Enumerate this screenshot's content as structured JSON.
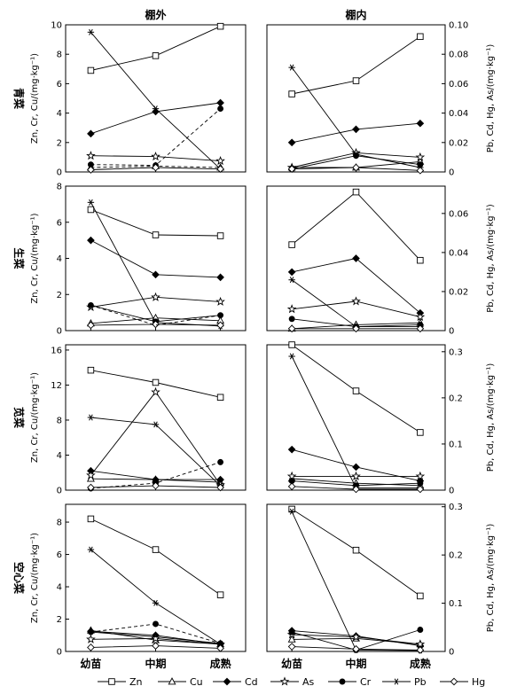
{
  "chart_data": {
    "type": "line",
    "columns": [
      "棚外",
      "棚内"
    ],
    "categories": [
      "幼苗",
      "中期",
      "成熟"
    ],
    "ylabel_left": "Zn, Cr, Cu/(mg·kg⁻¹)",
    "ylabel_right": "Pb, Cd, Hg, As/(mg·kg⁻¹)",
    "legend": [
      {
        "name": "Zn",
        "marker": "square"
      },
      {
        "name": "Cu",
        "marker": "triangle"
      },
      {
        "name": "Cd",
        "marker": "diamond-filled"
      },
      {
        "name": "As",
        "marker": "star-open"
      },
      {
        "name": "Cr",
        "marker": "circle-filled"
      },
      {
        "name": "Pb",
        "marker": "asterisk"
      },
      {
        "name": "Hg",
        "marker": "diamond-open"
      }
    ],
    "rows": [
      {
        "label": "青菜",
        "left_ticks": [
          "0",
          "2",
          "4",
          "6",
          "8",
          "10"
        ],
        "left_max": 10,
        "right_ticks": [
          "0",
          "0.02",
          "0.04",
          "0.06",
          "0.08",
          "0.10"
        ],
        "right_max": 0.1,
        "panels": [
          {
            "series": [
              {
                "name": "Zn",
                "axis": "left",
                "values": [
                  6.9,
                  7.9,
                  9.9
                ]
              },
              {
                "name": "Cu",
                "axis": "left",
                "values": [
                  0.3,
                  0.4,
                  0.3
                ],
                "dashed": true
              },
              {
                "name": "Cd",
                "axis": "left",
                "values": [
                  2.6,
                  4.1,
                  4.7
                ]
              },
              {
                "name": "As",
                "axis": "left",
                "values": [
                  1.1,
                  1.05,
                  0.75
                ]
              },
              {
                "name": "Cr",
                "axis": "left",
                "values": [
                  0.5,
                  0.45,
                  4.3
                ],
                "dashed": true
              },
              {
                "name": "Pb",
                "axis": "left",
                "values": [
                  9.5,
                  4.3,
                  0.2
                ]
              },
              {
                "name": "Hg",
                "axis": "left",
                "values": [
                  0.15,
                  0.3,
                  0.2
                ]
              }
            ]
          },
          {
            "series": [
              {
                "name": "Zn",
                "axis": "right",
                "values": [
                  0.053,
                  0.062,
                  0.092
                ]
              },
              {
                "name": "Cu",
                "axis": "right",
                "values": [
                  0.003,
                  0.003,
                  0.007
                ]
              },
              {
                "name": "Cd",
                "axis": "right",
                "values": [
                  0.02,
                  0.029,
                  0.033
                ]
              },
              {
                "name": "As",
                "axis": "right",
                "values": [
                  0.003,
                  0.013,
                  0.01
                ]
              },
              {
                "name": "Cr",
                "axis": "right",
                "values": [
                  0.002,
                  0.011,
                  0.005
                ]
              },
              {
                "name": "Pb",
                "axis": "right",
                "values": [
                  0.071,
                  0.012,
                  0.003
                ]
              },
              {
                "name": "Hg",
                "axis": "right",
                "values": [
                  0.002,
                  0.003,
                  0.001
                ]
              }
            ]
          }
        ]
      },
      {
        "label": "生菜",
        "left_ticks": [
          "0",
          "2",
          "4",
          "6",
          "8"
        ],
        "left_max": 8,
        "right_ticks": [
          "0",
          "0.02",
          "0.04",
          "0.06"
        ],
        "right_max": 0.074,
        "panels": [
          {
            "series": [
              {
                "name": "Zn",
                "axis": "left",
                "values": [
                  6.7,
                  5.3,
                  5.25
                ]
              },
              {
                "name": "Cu",
                "axis": "left",
                "values": [
                  0.4,
                  0.7,
                  0.55
                ]
              },
              {
                "name": "Cd",
                "axis": "left",
                "values": [
                  5.0,
                  3.1,
                  2.95
                ]
              },
              {
                "name": "As",
                "axis": "left",
                "values": [
                  1.3,
                  1.85,
                  1.6
                ]
              },
              {
                "name": "Cr",
                "axis": "left",
                "values": [
                  1.4,
                  0.5,
                  0.85
                ]
              },
              {
                "name": "Pb",
                "axis": "left",
                "values": [
                  7.1,
                  0.45,
                  0.25
                ]
              },
              {
                "name": "Hg",
                "axis": "left",
                "values": [
                  0.3,
                  0.35,
                  0.3
                ]
              },
              {
                "name": "Cr",
                "axis": "left",
                "values": [
                  1.4,
                  0.3,
                  0.85
                ],
                "dashed": true,
                "markers": false
              }
            ]
          },
          {
            "series": [
              {
                "name": "Zn",
                "axis": "right",
                "values": [
                  0.044,
                  0.071,
                  0.036
                ]
              },
              {
                "name": "Cu",
                "axis": "right",
                "values": [
                  0.001,
                  0.003,
                  0.004
                ]
              },
              {
                "name": "Cd",
                "axis": "right",
                "values": [
                  0.03,
                  0.037,
                  0.009
                ]
              },
              {
                "name": "As",
                "axis": "right",
                "values": [
                  0.011,
                  0.015,
                  0.007
                ]
              },
              {
                "name": "Cr",
                "axis": "right",
                "values": [
                  0.006,
                  0.002,
                  0.003
                ]
              },
              {
                "name": "Pb",
                "axis": "right",
                "values": [
                  0.026,
                  0.002,
                  0.002
                ]
              },
              {
                "name": "Hg",
                "axis": "right",
                "values": [
                  0.001,
                  0.001,
                  0.001
                ]
              }
            ]
          }
        ]
      },
      {
        "label": "苋菜",
        "left_ticks": [
          "0",
          "4",
          "8",
          "12",
          "16"
        ],
        "left_max": 16.6,
        "right_ticks": [
          "0",
          "0.1",
          "0.2",
          "0.3"
        ],
        "right_max": 0.315,
        "panels": [
          {
            "series": [
              {
                "name": "Zn",
                "axis": "left",
                "values": [
                  13.7,
                  12.3,
                  10.6
                ]
              },
              {
                "name": "Cu",
                "axis": "left",
                "values": [
                  1.3,
                  1.2,
                  0.9
                ]
              },
              {
                "name": "Cd",
                "axis": "left",
                "values": [
                  2.2,
                  1.2,
                  1.2
                ]
              },
              {
                "name": "As",
                "axis": "left",
                "values": [
                  1.7,
                  11.2,
                  0.6
                ]
              },
              {
                "name": "Cr",
                "axis": "left",
                "values": [
                  0.2,
                  0.8,
                  3.2
                ],
                "dashed": true
              },
              {
                "name": "Pb",
                "axis": "left",
                "values": [
                  8.3,
                  7.5,
                  0.5
                ]
              },
              {
                "name": "Hg",
                "axis": "left",
                "values": [
                  0.3,
                  0.5,
                  0.3
                ]
              }
            ]
          },
          {
            "series": [
              {
                "name": "Zn",
                "axis": "right",
                "values": [
                  0.315,
                  0.215,
                  0.125
                ]
              },
              {
                "name": "Cu",
                "axis": "right",
                "values": [
                  0.025,
                  0.015,
                  0.01
                ]
              },
              {
                "name": "Cd",
                "axis": "right",
                "values": [
                  0.088,
                  0.05,
                  0.02
                ]
              },
              {
                "name": "As",
                "axis": "right",
                "values": [
                  0.03,
                  0.03,
                  0.03
                ]
              },
              {
                "name": "Cr",
                "axis": "right",
                "values": [
                  0.02,
                  0.01,
                  0.015
                ]
              },
              {
                "name": "Pb",
                "axis": "right",
                "values": [
                  0.29,
                  0.005,
                  0.005
                ]
              },
              {
                "name": "Hg",
                "axis": "right",
                "values": [
                  0.008,
                  0.002,
                  0.002
                ]
              }
            ]
          }
        ]
      },
      {
        "label": "空心菜",
        "left_ticks": [
          "0",
          "2",
          "4",
          "6",
          "8"
        ],
        "left_max": 9.1,
        "right_ticks": [
          "0",
          "0.1",
          "0.2",
          "0.3"
        ],
        "right_max": 0.305,
        "panels": [
          {
            "series": [
              {
                "name": "Zn",
                "axis": "left",
                "values": [
                  8.2,
                  6.3,
                  3.5
                ]
              },
              {
                "name": "Cu",
                "axis": "left",
                "values": [
                  1.3,
                  0.7,
                  0.45
                ]
              },
              {
                "name": "Cd",
                "axis": "left",
                "values": [
                  1.25,
                  1.0,
                  0.45
                ]
              },
              {
                "name": "As",
                "axis": "left",
                "values": [
                  0.75,
                  0.8,
                  0.45
                ]
              },
              {
                "name": "Cr",
                "axis": "left",
                "values": [
                  1.2,
                  1.7,
                  0.5
                ],
                "dashed": true
              },
              {
                "name": "Pb",
                "axis": "left",
                "values": [
                  6.3,
                  3.0,
                  0.45
                ]
              },
              {
                "name": "Hg",
                "axis": "left",
                "values": [
                  0.25,
                  0.35,
                  0.2
                ]
              },
              {
                "name": "Cr",
                "axis": "left",
                "values": [
                  1.2,
                  0.9,
                  0.5
                ],
                "markers": false
              }
            ]
          },
          {
            "series": [
              {
                "name": "Zn",
                "axis": "right",
                "values": [
                  0.295,
                  0.21,
                  0.115
                ]
              },
              {
                "name": "Cu",
                "axis": "right",
                "values": [
                  0.025,
                  0.027,
                  0.015
                ]
              },
              {
                "name": "Cd",
                "axis": "right",
                "values": [
                  0.043,
                  0.032,
                  0.012
                ]
              },
              {
                "name": "As",
                "axis": "right",
                "values": [
                  0.035,
                  0.03,
                  0.015
                ]
              },
              {
                "name": "Cr",
                "axis": "right",
                "values": [
                  0.04,
                  0.003,
                  0.045
                ]
              },
              {
                "name": "Pb",
                "axis": "right",
                "values": [
                  0.29,
                  0.003,
                  0.002
                ]
              },
              {
                "name": "Hg",
                "axis": "right",
                "values": [
                  0.01,
                  0.005,
                  0.003
                ]
              }
            ]
          }
        ]
      }
    ]
  }
}
